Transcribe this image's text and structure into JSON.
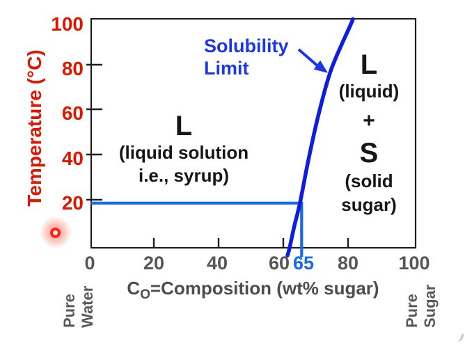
{
  "y_axis": {
    "label": "Temperature (°C)",
    "ticks": [
      "100",
      "80",
      "60",
      "40",
      "20"
    ]
  },
  "x_axis": {
    "title_c": "C",
    "title_sub": "O",
    "title_rest": "=Composition (wt% sugar)",
    "ticks": [
      "0",
      "20",
      "40",
      "60",
      "80",
      "100"
    ],
    "highlight_tick": "65"
  },
  "edge_labels": {
    "left": [
      "Pure",
      "Water"
    ],
    "right": [
      "Pure",
      "Sugar"
    ]
  },
  "annotations": {
    "solubility": [
      "Solubility",
      "Limit"
    ],
    "left_region": {
      "symbol": "L",
      "line1": "(liquid solution",
      "line2": "i.e., syrup)"
    },
    "right_region": {
      "symbol_liquid": "L",
      "liquid_caption": "(liquid)",
      "plus": "+",
      "symbol_solid": "S",
      "solid_caption1": "(solid",
      "solid_caption2": "sugar)"
    }
  },
  "colors": {
    "axis_red": "#e01500",
    "curve_blue": "#0d1ede",
    "bright_blue": "#1668ef",
    "label_blue": "#1c35ee",
    "tick_gray": "#565656",
    "text_black": "#161616",
    "border_dark": "#1c1c1c",
    "laser_red": "#ff2212"
  },
  "chart_data": {
    "type": "line",
    "title": "",
    "xlabel": "CO=Composition (wt% sugar)",
    "ylabel": "Temperature (°C)",
    "xlim": [
      0,
      100
    ],
    "ylim": [
      0,
      100
    ],
    "x_ticks": [
      0,
      20,
      40,
      60,
      65,
      80,
      100
    ],
    "y_ticks": [
      0,
      20,
      40,
      60,
      80,
      100
    ],
    "grid": false,
    "legend": "none",
    "series": [
      {
        "name": "Solubility Limit",
        "role": "phase-boundary",
        "color_key": "curve_blue",
        "points_wt_T": [
          [
            61.3,
            0
          ],
          [
            62.8,
            10
          ],
          [
            64.5,
            20
          ],
          [
            67.2,
            40
          ],
          [
            70.3,
            60
          ],
          [
            74.2,
            80
          ],
          [
            80.2,
            100
          ]
        ]
      },
      {
        "name": "20°C construction line",
        "role": "reference-line",
        "color_key": "bright_blue",
        "points_wt_T": [
          [
            0,
            20
          ],
          [
            65,
            20
          ],
          [
            65,
            0
          ]
        ]
      }
    ],
    "solubility_limit_at_20C_wt_pct": 65,
    "regions": [
      {
        "label": "L (liquid solution i.e., syrup)",
        "location": "left of solubility curve"
      },
      {
        "label": "L (liquid) + S (solid sugar)",
        "location": "right of solubility curve"
      }
    ],
    "annotations": [
      "Solubility Limit",
      "Pure Water",
      "Pure Sugar"
    ]
  }
}
